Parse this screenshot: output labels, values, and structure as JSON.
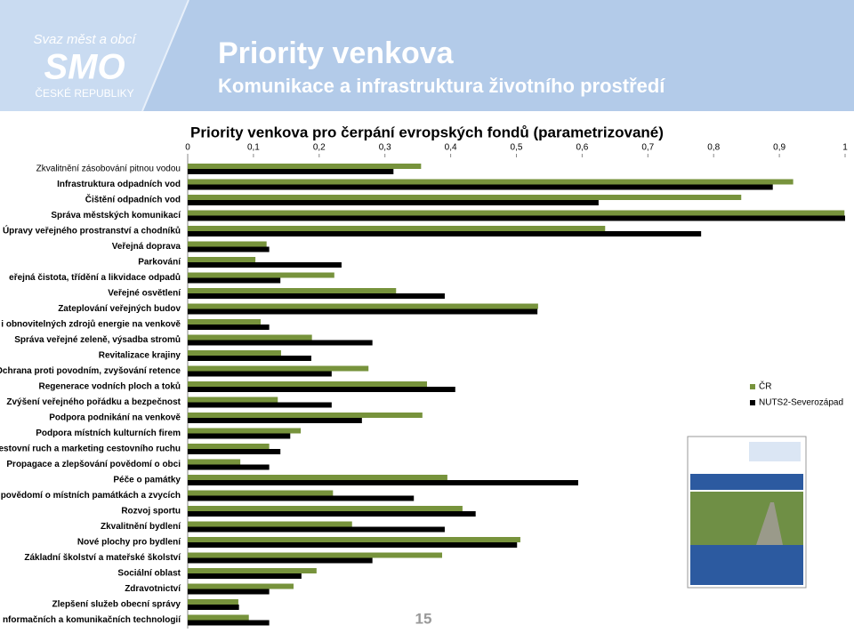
{
  "header": {
    "logo": [
      "Svaz měst a obcí",
      "SMO",
      "ČESKÉ REPUBLIKY"
    ],
    "title": "Priority venkova",
    "subtitle": "Komunikace a infrastruktura životního prostředí"
  },
  "chart_data": {
    "type": "bar",
    "orientation": "horizontal",
    "title": "Priority venkova pro čerpání evropských fondů (parametrizované)",
    "categories": [
      "Zkvalitnění zásobování pitnou vodou",
      "Infrastruktura odpadních vod",
      "Čištění odpadních vod",
      "Správa městských komunikací",
      "Úpravy veřejného prostranství a chodníků",
      "Veřejná doprava",
      "Parkování",
      "eřejná čistota, třídění a likvidace odpadů",
      "Veřejné osvětlení",
      "Zateplování veřejných budov",
      "i obnovitelných zdrojů energie na venkově",
      "Správa veřejné zeleně, výsadba stromů",
      "Revitalizace krajiny",
      "Ochrana proti povodním, zvyšování retence",
      "Regenerace vodních ploch a toků",
      "Zvýšení veřejného pořádku a bezpečnost",
      "Podpora podnikání na venkově",
      "Podpora místních kulturních firem",
      "estovní ruch a marketing cestovního ruchu",
      "Propagace a zlepšování povědomí o obci",
      "Péče o památky",
      "povědomí o místních památkách a zvycích",
      "Rozvoj sportu",
      "Zkvalitnění bydlení",
      "Nové plochy pro bydlení",
      "Základní školství a mateřské školství",
      "Sociální oblast",
      "Zdravotnictví",
      "Zlepšení služeb obecní správy",
      "nformačních a komunikačních technologií"
    ],
    "series": [
      {
        "name": "ČR",
        "color": "#77933c",
        "values": [
          0.355,
          0.921,
          0.842,
          0.999,
          0.635,
          0.12,
          0.103,
          0.223,
          0.317,
          0.533,
          0.111,
          0.189,
          0.142,
          0.275,
          0.364,
          0.137,
          0.357,
          0.172,
          0.124,
          0.08,
          0.395,
          0.221,
          0.418,
          0.25,
          0.506,
          0.387,
          0.196,
          0.161,
          0.077,
          0.093
        ]
      },
      {
        "name": "NUTS2-Severozápad",
        "color": "#000000",
        "values": [
          0.313,
          0.89,
          0.625,
          1.0,
          0.781,
          0.124,
          0.234,
          0.141,
          0.391,
          0.532,
          0.124,
          0.281,
          0.188,
          0.219,
          0.407,
          0.219,
          0.265,
          0.156,
          0.141,
          0.124,
          0.594,
          0.344,
          0.438,
          0.391,
          0.501,
          0.281,
          0.173,
          0.124,
          0.078,
          0.124
        ]
      }
    ],
    "xlim": [
      0,
      1
    ],
    "xticks": [
      0,
      {
        "value": 0.1,
        "label": "0,1"
      },
      {
        "value": 0.2,
        "label": "0,2"
      },
      {
        "value": 0.3,
        "label": "0,3"
      },
      {
        "value": 0.4,
        "label": "0,4"
      },
      {
        "value": 0.5,
        "label": "0,5"
      },
      {
        "value": 0.6,
        "label": "0,6"
      },
      {
        "value": 0.7,
        "label": "0,7"
      },
      {
        "value": 0.8,
        "label": "0,8"
      },
      {
        "value": 0.9,
        "label": "0,9"
      },
      1
    ],
    "grid": false,
    "legend": "right"
  },
  "page_number": 15
}
